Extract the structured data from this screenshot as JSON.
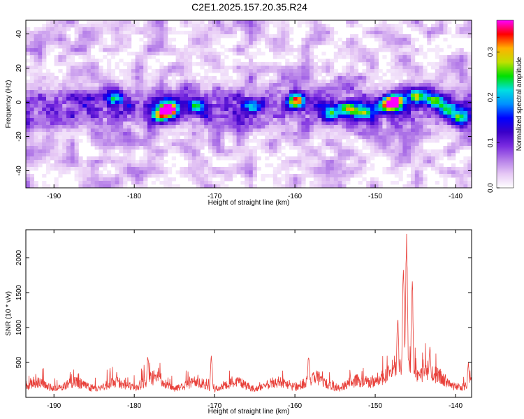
{
  "title": "C2E1.2025.157.20.35.R24",
  "chart_data": [
    {
      "type": "heatmap",
      "xlabel": "Height of straight line (km)",
      "ylabel": "Frequency (Hz)",
      "xlim": [
        -193.5,
        -138
      ],
      "ylim": [
        -50,
        48
      ],
      "xticks": [
        -190,
        -180,
        -170,
        -160,
        -150,
        -140
      ],
      "yticks": [
        -40,
        -20,
        0,
        20,
        40
      ],
      "colorbar": {
        "label": "Normalized spectral amplitude",
        "range": [
          0,
          0.37
        ],
        "ticks": [
          0.0,
          0.1,
          0.2,
          0.3
        ],
        "colors": [
          "#ffffff",
          "#e6c8f5",
          "#b47de8",
          "#7a2be0",
          "#3a00c8",
          "#0000ff",
          "#0090ff",
          "#00e0e0",
          "#00e000",
          "#c0e000",
          "#ffb000",
          "#ff0000",
          "#ff00ff"
        ]
      },
      "band": {
        "center_freq_hz": -3,
        "half_width_hz": 12
      },
      "hotspots": [
        {
          "x": -175.8,
          "y": -4,
          "amp": 0.37
        },
        {
          "x": -176.8,
          "y": -8,
          "amp": 0.22
        },
        {
          "x": -182.5,
          "y": 2,
          "amp": 0.15
        },
        {
          "x": -172,
          "y": -2,
          "amp": 0.14
        },
        {
          "x": -165.5,
          "y": -2,
          "amp": 0.14
        },
        {
          "x": -159.8,
          "y": 1,
          "amp": 0.27
        },
        {
          "x": -155.5,
          "y": -7,
          "amp": 0.16
        },
        {
          "x": -153.5,
          "y": -4,
          "amp": 0.2
        },
        {
          "x": -151.5,
          "y": -6,
          "amp": 0.15
        },
        {
          "x": -148.8,
          "y": -2,
          "amp": 0.17
        },
        {
          "x": -147.6,
          "y": 0,
          "amp": 0.37
        },
        {
          "x": -144.8,
          "y": 4,
          "amp": 0.24
        },
        {
          "x": -142.5,
          "y": 1,
          "amp": 0.2
        },
        {
          "x": -141,
          "y": -4,
          "amp": 0.18
        },
        {
          "x": -139.5,
          "y": -9,
          "amp": 0.15
        }
      ]
    },
    {
      "type": "line",
      "xlabel": "Height of straight line (km)",
      "ylabel": "SNR (10 * v/v)",
      "xlim": [
        -193.5,
        -138
      ],
      "ylim": [
        0,
        2400
      ],
      "xticks": [
        -190,
        -180,
        -170,
        -160,
        -150,
        -140
      ],
      "yticks": [
        500,
        1000,
        1500,
        2000
      ],
      "color": "#e8403a",
      "baseline": 150,
      "peaks": [
        {
          "x": -178.3,
          "y": 620
        },
        {
          "x": -170.4,
          "y": 610
        },
        {
          "x": -158.3,
          "y": 630
        },
        {
          "x": -147.2,
          "y": 1200
        },
        {
          "x": -146.5,
          "y": 1950
        },
        {
          "x": -146.1,
          "y": 2400
        },
        {
          "x": -145.4,
          "y": 1750
        },
        {
          "x": -143.2,
          "y": 750
        },
        {
          "x": -138.4,
          "y": 520
        }
      ]
    }
  ]
}
